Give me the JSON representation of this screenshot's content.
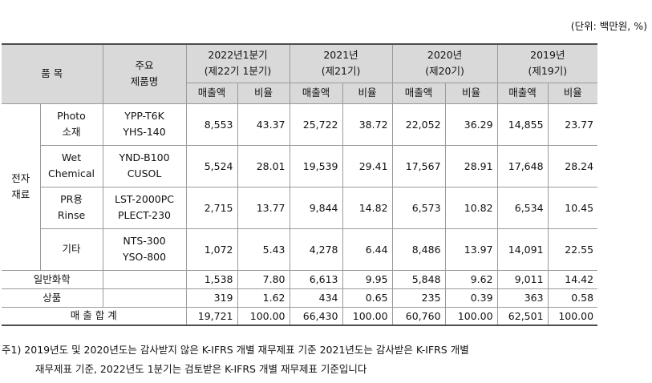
{
  "unit_label": "(단위: 백만원, %)",
  "header": {
    "item": "품 목",
    "product": [
      "주요",
      "제품명"
    ],
    "periods": [
      [
        "2022년1분기",
        "(제22기 1분기)"
      ],
      [
        "2021년",
        "(제21기)"
      ],
      [
        "2020년",
        "(제20기)"
      ],
      [
        "2019년",
        "(제19기)"
      ]
    ],
    "sales": "매출액",
    "ratio": "비율"
  },
  "group_label": [
    "전자",
    "재료"
  ],
  "group_rows": [
    {
      "item": [
        "Photo",
        "소재"
      ],
      "products": [
        "YPP-T6K",
        "YHS-140"
      ],
      "values": [
        "8,553",
        "43.37",
        "25,722",
        "38.72",
        "22,052",
        "36.29",
        "14,855",
        "23.77"
      ]
    },
    {
      "item": [
        "Wet",
        "Chemical"
      ],
      "products": [
        "YND-B100",
        "CUSOL"
      ],
      "values": [
        "5,524",
        "28.01",
        "19,539",
        "29.41",
        "17,567",
        "28.91",
        "17,648",
        "28.24"
      ]
    },
    {
      "item": [
        "PR용",
        "Rinse"
      ],
      "products": [
        "LST-2000PC",
        "PLECT-230"
      ],
      "values": [
        "2,715",
        "13.77",
        "9,844",
        "14.82",
        "6,573",
        "10.82",
        "6,534",
        "10.45"
      ]
    },
    {
      "item": [
        "기타",
        ""
      ],
      "products": [
        "NTS-300",
        "YSO-800"
      ],
      "values": [
        "1,072",
        "5.43",
        "4,278",
        "6.44",
        "8,486",
        "13.97",
        "14,091",
        "22.55"
      ]
    }
  ],
  "simple_rows": [
    {
      "item": "일반화학",
      "values": [
        "1,538",
        "7.80",
        "6,613",
        "9.95",
        "5,848",
        "9.62",
        "9,011",
        "14.42"
      ]
    },
    {
      "item": "상품",
      "values": [
        "319",
        "1.62",
        "434",
        "0.65",
        "235",
        "0.39",
        "363",
        "0.58"
      ]
    }
  ],
  "total_row": {
    "label": "매 출 합 계",
    "values": [
      "19,721",
      "100.00",
      "66,430",
      "100.00",
      "60,760",
      "100.00",
      "62,501",
      "100.00"
    ]
  },
  "notes": {
    "line1": "주1)  2019년도 및 2020년도는 감사받지 않은 K-IFRS 개별 재무제표 기준 2021년도는 감사받은 K-IFRS 개별",
    "line2": "재무제표 기준, 2022년도 1분기는 검토받은 K-IFRS 개별 재무제표 기준입니다"
  }
}
